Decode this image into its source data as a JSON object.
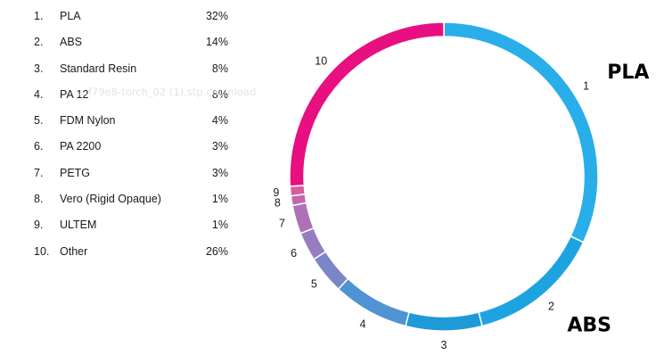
{
  "watermark_text": "...f79e8-torch_02 (1).stp.co...nload",
  "chart_data": {
    "type": "pie",
    "style": "donut",
    "slices": [
      {
        "rank": "1.",
        "label": "PLA",
        "value": 32,
        "display": "32%",
        "slice_label": "1",
        "color": "#29aee9"
      },
      {
        "rank": "2.",
        "label": "ABS",
        "value": 14,
        "display": "14%",
        "slice_label": "2",
        "color": "#1ea3e1"
      },
      {
        "rank": "3.",
        "label": "Standard Resin",
        "value": 8,
        "display": "8%",
        "slice_label": "3",
        "color": "#1e9ad8"
      },
      {
        "rank": "4.",
        "label": "PA 12",
        "value": 8,
        "display": "8%",
        "slice_label": "4",
        "color": "#4f93d2"
      },
      {
        "rank": "5.",
        "label": "FDM Nylon",
        "value": 4,
        "display": "4%",
        "slice_label": "5",
        "color": "#7a86c8"
      },
      {
        "rank": "6.",
        "label": "PA 2200",
        "value": 3,
        "display": "3%",
        "slice_label": "6",
        "color": "#977dc0"
      },
      {
        "rank": "7.",
        "label": "PETG",
        "value": 3,
        "display": "3%",
        "slice_label": "7",
        "color": "#ad72b6"
      },
      {
        "rank": "8.",
        "label": "Vero (Rigid Opaque)",
        "value": 1,
        "display": "1%",
        "slice_label": "8",
        "color": "#c566ac"
      },
      {
        "rank": "9.",
        "label": "ULTEM",
        "value": 1,
        "display": "1%",
        "slice_label": "9",
        "color": "#d65ea0"
      },
      {
        "rank": "10.",
        "label": "Other",
        "value": 26,
        "display": "26%",
        "slice_label": "10",
        "color": "#e80f80"
      }
    ],
    "callouts": [
      {
        "text": "PLA",
        "slice": 0
      },
      {
        "text": "ABS",
        "slice": 1
      }
    ]
  }
}
